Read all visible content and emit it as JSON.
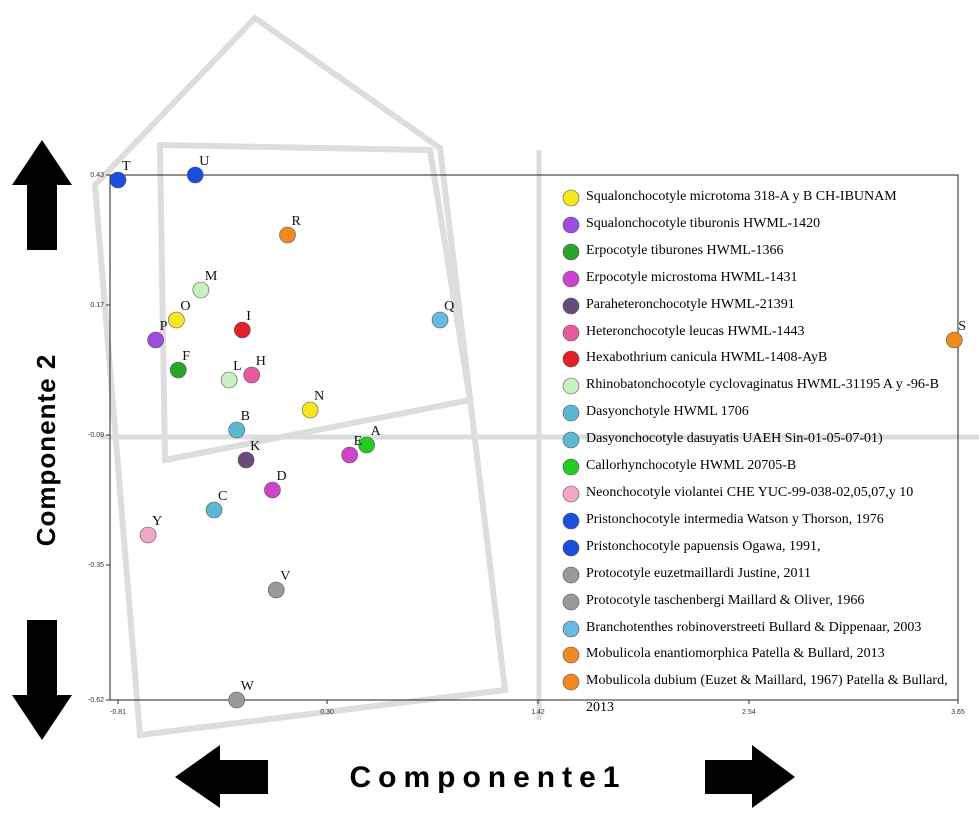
{
  "chart_data": {
    "type": "scatter",
    "xlabel": "Componente1",
    "ylabel": "Componente 2",
    "xlim": [
      -0.81,
      3.65
    ],
    "ylim": [
      -0.62,
      0.43
    ],
    "xticks": [
      {
        "value": -0.81,
        "label": "-0.81"
      },
      {
        "value": 0.3,
        "label": "0.30"
      },
      1.42,
      2.54,
      3.65
    ],
    "yticks": [
      0.43,
      0.17,
      {
        "value": -0.09,
        "label": "-0.09"
      },
      -0.35,
      -0.62
    ],
    "points": [
      {
        "label": "T",
        "x": -0.81,
        "y": 0.42,
        "color": "#1a4de0"
      },
      {
        "label": "U",
        "x": -0.4,
        "y": 0.43,
        "color": "#1a4de0"
      },
      {
        "label": "R",
        "x": 0.09,
        "y": 0.31,
        "color": "#f08a20"
      },
      {
        "label": "M",
        "x": -0.37,
        "y": 0.2,
        "color": "#c8f0c0"
      },
      {
        "label": "O",
        "x": -0.5,
        "y": 0.14,
        "color": "#f5e61e"
      },
      {
        "label": "P",
        "x": -0.61,
        "y": 0.1,
        "color": "#9b4de0"
      },
      {
        "label": "I",
        "x": -0.15,
        "y": 0.12,
        "color": "#e0202a"
      },
      {
        "label": "F",
        "x": -0.49,
        "y": 0.04,
        "color": "#2aa52a"
      },
      {
        "label": "L",
        "x": -0.22,
        "y": 0.02,
        "color": "#c8f0c0"
      },
      {
        "label": "H",
        "x": -0.1,
        "y": 0.03,
        "color": "#e85aa0"
      },
      {
        "label": "N",
        "x": 0.21,
        "y": -0.04,
        "color": "#f5e61e"
      },
      {
        "label": "B",
        "x": -0.18,
        "y": -0.08,
        "color": "#5ab8d0"
      },
      {
        "label": "K",
        "x": -0.13,
        "y": -0.14,
        "color": "#6a4a7a"
      },
      {
        "label": "A",
        "x": 0.51,
        "y": -0.11,
        "color": "#22cc22"
      },
      {
        "label": "E",
        "x": 0.42,
        "y": -0.13,
        "color": "#cc44cc"
      },
      {
        "label": "D",
        "x": 0.01,
        "y": -0.2,
        "color": "#cc44cc"
      },
      {
        "label": "C",
        "x": -0.3,
        "y": -0.24,
        "color": "#5ab8d0"
      },
      {
        "label": "Y",
        "x": -0.65,
        "y": -0.29,
        "color": "#f4a6c8"
      },
      {
        "label": "V",
        "x": 0.03,
        "y": -0.4,
        "color": "#999999"
      },
      {
        "label": "W",
        "x": -0.18,
        "y": -0.62,
        "color": "#999999"
      },
      {
        "label": "Q",
        "x": 0.9,
        "y": 0.14,
        "color": "#6ab8e0"
      },
      {
        "label": "S",
        "x": 3.63,
        "y": 0.1,
        "color": "#f08a20"
      }
    ],
    "legend": [
      {
        "name": "Squalonchocotyle microtoma 318-A y B CH-IBUNAM",
        "color": "#f5e61e"
      },
      {
        "name": "Squalonchocotyle tiburonis HWML-1420",
        "color": "#9b4de0"
      },
      {
        "name": "Erpocotyle tiburones HWML-1366",
        "color": "#2aa52a"
      },
      {
        "name": "Erpocotyle microstoma HWML-1431",
        "color": "#cc44cc"
      },
      {
        "name": "Paraheteronchocotyle HWML-21391",
        "color": "#6a4a7a"
      },
      {
        "name": "Heteronchocotyle leucas HWML-1443",
        "color": "#e85aa0"
      },
      {
        "name": "Hexabothrium canicula HWML-1408-AyB",
        "color": "#e0202a"
      },
      {
        "name": "Rhinobatonchocotyle cyclovaginatus HWML-31195 A y -96-B",
        "color": "#c8f0c0"
      },
      {
        "name": "Dasyonchotyle HWML 1706",
        "color": "#5ab8d0"
      },
      {
        "name": "Dasyonchocotyle dasuyatis UAEH Sin-01-05-07-01)",
        "color": "#5ab8d0"
      },
      {
        "name": "Callorhynchocotyle HWML 20705-B",
        "color": "#22cc22"
      },
      {
        "name": "Neonchocotyle violantei CHE YUC-99-038-02,05,07,y 10",
        "color": "#f4a6c8"
      },
      {
        "name": "Pristonchocotyle intermedia Watson y Thorson, 1976",
        "color": "#1a4de0"
      },
      {
        "name": "Pristonchocotyle papuensis Ogawa, 1991,",
        "color": "#1a4de0"
      },
      {
        "name": "Protocotyle euzetmaillardi Justine, 2011",
        "color": "#999999"
      },
      {
        "name": "Protocotyle taschenbergi Maillard & Oliver, 1966",
        "color": "#999999"
      },
      {
        "name": "Branchotenthes robinoverstreeti Bullard & Dippenaar, 2003",
        "color": "#6ab8e0"
      },
      {
        "name": "Mobulicola enantiomorphica Patella & Bullard, 2013",
        "color": "#f08a20"
      },
      {
        "name": "Mobulicola dubium (Euzet & Maillard, 1967) Patella & Bullard, 2013",
        "color": "#f08a20"
      }
    ]
  }
}
